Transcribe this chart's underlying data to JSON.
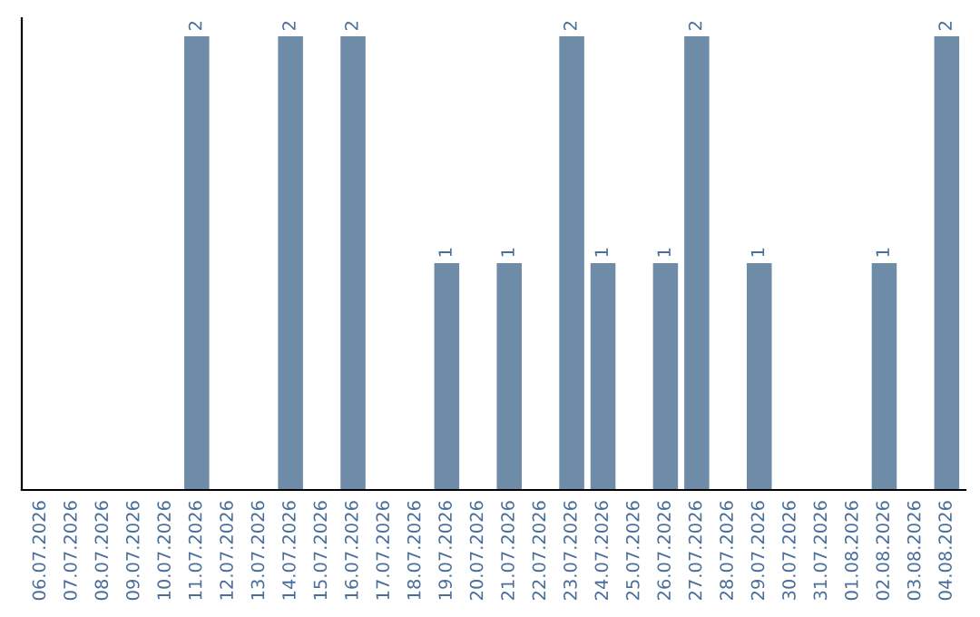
{
  "chart_data": {
    "type": "bar",
    "categories": [
      "06.07.2026",
      "07.07.2026",
      "08.07.2026",
      "09.07.2026",
      "10.07.2026",
      "11.07.2026",
      "12.07.2026",
      "13.07.2026",
      "14.07.2026",
      "15.07.2026",
      "16.07.2026",
      "17.07.2026",
      "18.07.2026",
      "19.07.2026",
      "20.07.2026",
      "21.07.2026",
      "22.07.2026",
      "23.07.2026",
      "24.07.2026",
      "25.07.2026",
      "26.07.2026",
      "27.07.2026",
      "28.07.2026",
      "29.07.2026",
      "30.07.2026",
      "31.07.2026",
      "01.08.2026",
      "02.08.2026",
      "03.08.2026",
      "04.08.2026"
    ],
    "values": [
      0,
      0,
      0,
      0,
      0,
      2,
      0,
      0,
      2,
      0,
      2,
      0,
      0,
      1,
      0,
      1,
      0,
      2,
      1,
      0,
      1,
      2,
      0,
      1,
      0,
      0,
      0,
      1,
      0,
      2
    ],
    "value_labels": [
      null,
      null,
      null,
      null,
      null,
      "2",
      null,
      null,
      "2",
      null,
      "2",
      null,
      null,
      "1",
      null,
      "1",
      null,
      "2",
      "1",
      null,
      "1",
      "2",
      null,
      "1",
      null,
      null,
      null,
      "1",
      null,
      "2"
    ],
    "color": "#6e8ca8",
    "ylim": [
      0,
      2.08
    ],
    "tick_labels": "x",
    "grid": false,
    "legend": false
  }
}
